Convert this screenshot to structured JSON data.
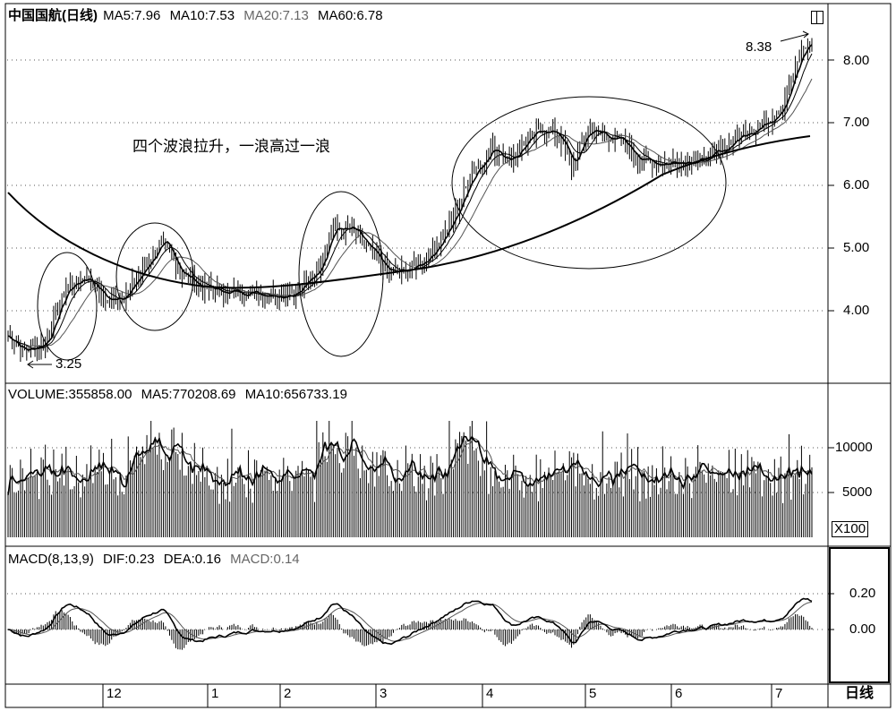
{
  "price_panel": {
    "title": "中国国航(日线)",
    "ma_labels": [
      {
        "text": "MA5:7.96",
        "color": "#000000"
      },
      {
        "text": "MA10:7.53",
        "color": "#000000"
      },
      {
        "text": "MA20:7.13",
        "color": "#666666"
      },
      {
        "text": "MA60:6.78",
        "color": "#000000"
      }
    ],
    "annotation": "四个波浪拉升，一浪高过一浪",
    "high_label": "8.38",
    "low_label": "3.25",
    "y_ticks": [
      "8.00",
      "7.00",
      "6.00",
      "5.00",
      "4.00"
    ]
  },
  "volume_panel": {
    "labels": [
      "VOLUME:355858.00",
      "MA5:770208.69",
      "MA10:656733.19"
    ],
    "y_ticks": [
      "10000",
      "5000"
    ],
    "unit": "X100"
  },
  "macd_panel": {
    "labels": [
      {
        "text": "MACD(8,13,9)",
        "color": "#000000"
      },
      {
        "text": "DIF:0.23",
        "color": "#000000"
      },
      {
        "text": "DEA:0.16",
        "color": "#000000"
      },
      {
        "text": "MACD:0.14",
        "color": "#666666"
      }
    ],
    "y_ticks": [
      "0.20",
      "0.00"
    ]
  },
  "x_axis": {
    "months": [
      "12",
      "1",
      "2",
      "3",
      "4",
      "5",
      "6",
      "7"
    ],
    "period_button": "日线"
  },
  "icons": {
    "layout_toggle": "window-toggle-icon"
  },
  "chart_data": [
    {
      "type": "candlestick-line",
      "title": "中国国航(日线)",
      "y_ticks": [
        4.0,
        5.0,
        6.0,
        7.0,
        8.0
      ],
      "x_tick_labels": [
        "12",
        "1",
        "2",
        "3",
        "4",
        "5",
        "6",
        "7"
      ],
      "labeled_extremes": {
        "low": 3.25,
        "high": 8.38
      },
      "moving_averages": {
        "MA5": 7.96,
        "MA10": 7.53,
        "MA20": 7.13,
        "MA60": 6.78
      },
      "wave_annotations": 4
    },
    {
      "type": "bar",
      "title": "VOLUME",
      "last_value": 355858.0,
      "MA5": 770208.69,
      "MA10": 656733.19,
      "y_ticks": [
        5000,
        10000
      ],
      "unit": "X100"
    },
    {
      "type": "line",
      "title": "MACD(8,13,9)",
      "DIF": 0.23,
      "DEA": 0.16,
      "MACD": 0.14,
      "y_ticks": [
        0.0,
        0.2
      ]
    }
  ]
}
